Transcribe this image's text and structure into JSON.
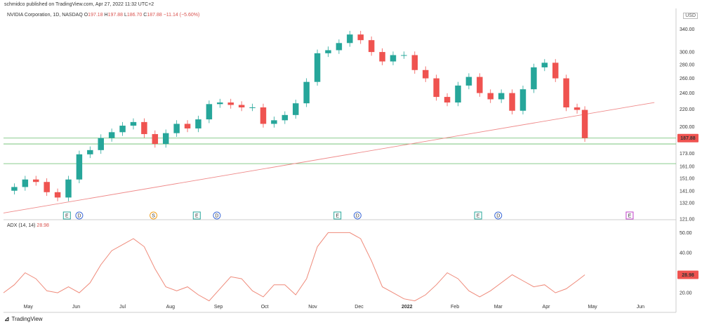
{
  "header": {
    "published": "schmidco published on TradingView.com, Apr 27, 2022 11:32 UTC+2",
    "symbol": "NVIDIA Corporation, 1D, NASDAQ",
    "o_label": "O",
    "o": "197.18",
    "h_label": "H",
    "h": "197.88",
    "l_label": "L",
    "l": "186.70",
    "c_label": "C",
    "c": "187.88",
    "change": "−11.14 (−5.60%)",
    "currency": "USD"
  },
  "adx": {
    "label": "ADX (14, 14)",
    "value": "28.98"
  },
  "footer": {
    "brand": "TradingView"
  },
  "colors": {
    "up": "#26a69a",
    "down": "#ef5350",
    "trend": "#ef8a8a",
    "support": "#66bb6a",
    "adx": "#ef8a7a",
    "last": "#ef5350"
  },
  "chart_data": [
    {
      "type": "candlestick",
      "title": "NVIDIA Corporation, 1D, NASDAQ",
      "y_scale": "log",
      "ylim": [
        121,
        355
      ],
      "y_ticks": [
        "340.00",
        "300.00",
        "280.00",
        "260.00",
        "240.00",
        "220.00",
        "200.00",
        "187.88",
        "173.00",
        "161.00",
        "151.00",
        "141.00",
        "132.00",
        "121.00"
      ],
      "x_ticks": [
        "May",
        "Jun",
        "Jul",
        "Aug",
        "Sep",
        "Oct",
        "Nov",
        "Dec",
        "2022",
        "Feb",
        "Mar",
        "Apr",
        "May",
        "Jun"
      ],
      "last_price": "187.88",
      "series_close": [
        {
          "date": "2021-04-22",
          "v": 144
        },
        {
          "date": "2021-04-29",
          "v": 150
        },
        {
          "date": "2021-05-06",
          "v": 148
        },
        {
          "date": "2021-05-13",
          "v": 140
        },
        {
          "date": "2021-05-20",
          "v": 136
        },
        {
          "date": "2021-05-27",
          "v": 150
        },
        {
          "date": "2021-06-03",
          "v": 172
        },
        {
          "date": "2021-06-10",
          "v": 176
        },
        {
          "date": "2021-06-17",
          "v": 188
        },
        {
          "date": "2021-06-24",
          "v": 194
        },
        {
          "date": "2021-07-01",
          "v": 201
        },
        {
          "date": "2021-07-08",
          "v": 205
        },
        {
          "date": "2021-07-15",
          "v": 192
        },
        {
          "date": "2021-07-22",
          "v": 182
        },
        {
          "date": "2021-07-29",
          "v": 193
        },
        {
          "date": "2021-08-05",
          "v": 203
        },
        {
          "date": "2021-08-12",
          "v": 198
        },
        {
          "date": "2021-08-19",
          "v": 208
        },
        {
          "date": "2021-08-26",
          "v": 226
        },
        {
          "date": "2021-09-02",
          "v": 228
        },
        {
          "date": "2021-09-09",
          "v": 225
        },
        {
          "date": "2021-09-16",
          "v": 222
        },
        {
          "date": "2021-09-23",
          "v": 222
        },
        {
          "date": "2021-09-30",
          "v": 203
        },
        {
          "date": "2021-10-07",
          "v": 207
        },
        {
          "date": "2021-10-14",
          "v": 213
        },
        {
          "date": "2021-10-21",
          "v": 227
        },
        {
          "date": "2021-10-28",
          "v": 255
        },
        {
          "date": "2021-11-04",
          "v": 298
        },
        {
          "date": "2021-11-11",
          "v": 303
        },
        {
          "date": "2021-11-18",
          "v": 315
        },
        {
          "date": "2021-11-25",
          "v": 330
        },
        {
          "date": "2021-12-02",
          "v": 320
        },
        {
          "date": "2021-12-09",
          "v": 300
        },
        {
          "date": "2021-12-16",
          "v": 285
        },
        {
          "date": "2021-12-23",
          "v": 295
        },
        {
          "date": "2021-12-30",
          "v": 295
        },
        {
          "date": "2022-01-06",
          "v": 272
        },
        {
          "date": "2022-01-13",
          "v": 260
        },
        {
          "date": "2022-01-20",
          "v": 235
        },
        {
          "date": "2022-01-27",
          "v": 228
        },
        {
          "date": "2022-02-03",
          "v": 250
        },
        {
          "date": "2022-02-10",
          "v": 262
        },
        {
          "date": "2022-02-17",
          "v": 240
        },
        {
          "date": "2022-02-24",
          "v": 232
        },
        {
          "date": "2022-03-03",
          "v": 240
        },
        {
          "date": "2022-03-10",
          "v": 218
        },
        {
          "date": "2022-03-17",
          "v": 245
        },
        {
          "date": "2022-03-24",
          "v": 276
        },
        {
          "date": "2022-03-31",
          "v": 283
        },
        {
          "date": "2022-04-07",
          "v": 260
        },
        {
          "date": "2022-04-14",
          "v": 222
        },
        {
          "date": "2022-04-21",
          "v": 219
        },
        {
          "date": "2022-04-26",
          "v": 187.88
        }
      ],
      "trend_line": [
        {
          "date": "2021-04-15",
          "v": 125
        },
        {
          "date": "2022-06-10",
          "v": 228
        }
      ],
      "horizontal_lines": [
        187.88,
        182,
        163.5
      ],
      "events": [
        {
          "label": "E",
          "date": "2021-05-26",
          "color": "#26a69a"
        },
        {
          "label": "D",
          "date": "2021-06-03",
          "color": "#3f6bd8"
        },
        {
          "label": "S",
          "date": "2021-07-21",
          "color": "#f0a020"
        },
        {
          "label": "E",
          "date": "2021-08-18",
          "color": "#26a69a"
        },
        {
          "label": "D",
          "date": "2021-08-31",
          "color": "#3f6bd8"
        },
        {
          "label": "E",
          "date": "2021-11-17",
          "color": "#26a69a"
        },
        {
          "label": "D",
          "date": "2021-11-30",
          "color": "#3f6bd8"
        },
        {
          "label": "E",
          "date": "2022-02-16",
          "color": "#26a69a"
        },
        {
          "label": "D",
          "date": "2022-03-01",
          "color": "#3f6bd8"
        },
        {
          "label": "E",
          "date": "2022-05-25",
          "color": "#c040c8"
        }
      ]
    },
    {
      "type": "line",
      "title": "ADX (14, 14)",
      "ylim": [
        12,
        54
      ],
      "y_ticks": [
        "50.00",
        "40.00",
        "28.98",
        "20.00"
      ],
      "series": [
        {
          "values": [
            {
              "date": "2021-04-15",
              "v": 20
            },
            {
              "date": "2021-04-22",
              "v": 24
            },
            {
              "date": "2021-04-29",
              "v": 30
            },
            {
              "date": "2021-05-06",
              "v": 27
            },
            {
              "date": "2021-05-13",
              "v": 21
            },
            {
              "date": "2021-05-20",
              "v": 20
            },
            {
              "date": "2021-05-27",
              "v": 23
            },
            {
              "date": "2021-06-03",
              "v": 20
            },
            {
              "date": "2021-06-10",
              "v": 25
            },
            {
              "date": "2021-06-17",
              "v": 34
            },
            {
              "date": "2021-06-24",
              "v": 41
            },
            {
              "date": "2021-07-01",
              "v": 44
            },
            {
              "date": "2021-07-08",
              "v": 47
            },
            {
              "date": "2021-07-15",
              "v": 43
            },
            {
              "date": "2021-07-22",
              "v": 32
            },
            {
              "date": "2021-07-29",
              "v": 23
            },
            {
              "date": "2021-08-05",
              "v": 21
            },
            {
              "date": "2021-08-12",
              "v": 23
            },
            {
              "date": "2021-08-19",
              "v": 19
            },
            {
              "date": "2021-08-26",
              "v": 16
            },
            {
              "date": "2021-09-02",
              "v": 22
            },
            {
              "date": "2021-09-09",
              "v": 28
            },
            {
              "date": "2021-09-16",
              "v": 27
            },
            {
              "date": "2021-09-23",
              "v": 21
            },
            {
              "date": "2021-09-30",
              "v": 18
            },
            {
              "date": "2021-10-07",
              "v": 24
            },
            {
              "date": "2021-10-14",
              "v": 24
            },
            {
              "date": "2021-10-21",
              "v": 19
            },
            {
              "date": "2021-10-28",
              "v": 27
            },
            {
              "date": "2021-11-04",
              "v": 43
            },
            {
              "date": "2021-11-11",
              "v": 50
            },
            {
              "date": "2021-11-18",
              "v": 50
            },
            {
              "date": "2021-11-25",
              "v": 50
            },
            {
              "date": "2021-12-02",
              "v": 47
            },
            {
              "date": "2021-12-09",
              "v": 36
            },
            {
              "date": "2021-12-16",
              "v": 23
            },
            {
              "date": "2021-12-23",
              "v": 20
            },
            {
              "date": "2021-12-30",
              "v": 17
            },
            {
              "date": "2022-01-06",
              "v": 16
            },
            {
              "date": "2022-01-13",
              "v": 19
            },
            {
              "date": "2022-01-20",
              "v": 24
            },
            {
              "date": "2022-01-27",
              "v": 30
            },
            {
              "date": "2022-02-03",
              "v": 27
            },
            {
              "date": "2022-02-10",
              "v": 21
            },
            {
              "date": "2022-02-17",
              "v": 18
            },
            {
              "date": "2022-02-24",
              "v": 21
            },
            {
              "date": "2022-03-03",
              "v": 25
            },
            {
              "date": "2022-03-10",
              "v": 29
            },
            {
              "date": "2022-03-17",
              "v": 26
            },
            {
              "date": "2022-03-24",
              "v": 23
            },
            {
              "date": "2022-03-31",
              "v": 24
            },
            {
              "date": "2022-04-07",
              "v": 20
            },
            {
              "date": "2022-04-14",
              "v": 22
            },
            {
              "date": "2022-04-21",
              "v": 26
            },
            {
              "date": "2022-04-26",
              "v": 28.98
            }
          ]
        }
      ]
    }
  ]
}
